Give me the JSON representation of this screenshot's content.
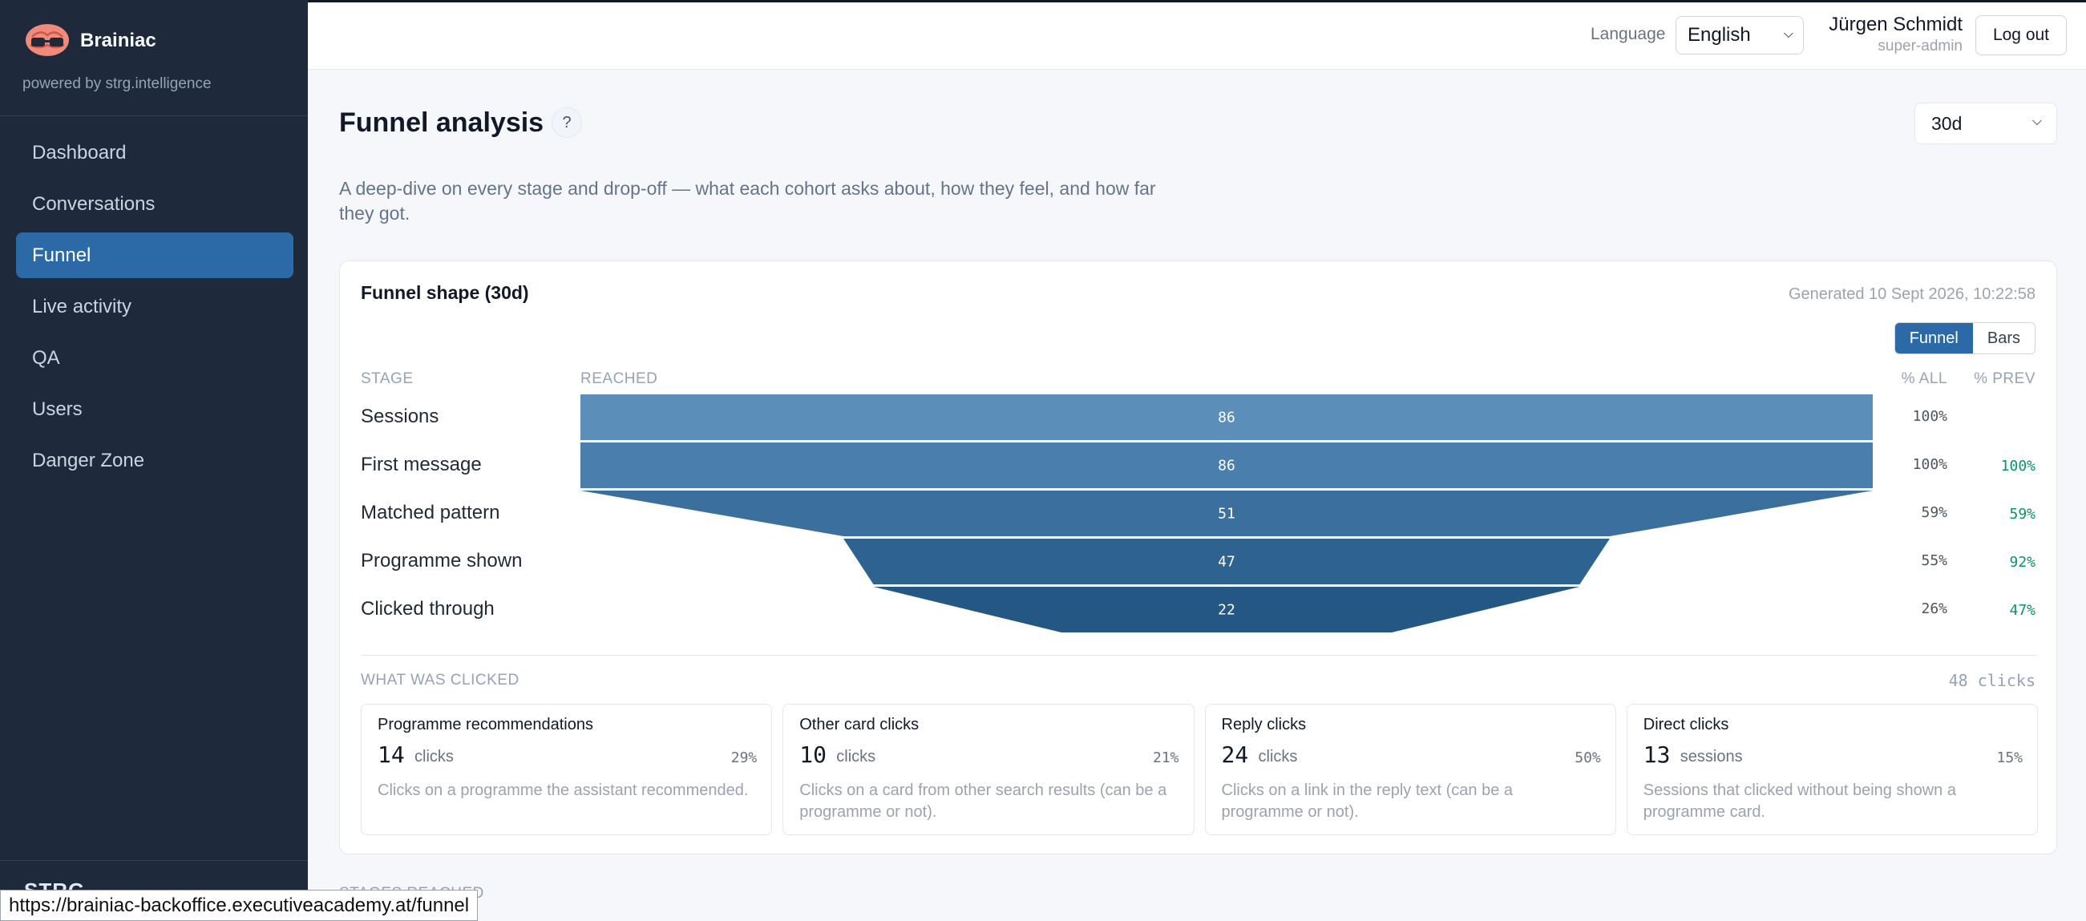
{
  "app": {
    "name": "Brainiac",
    "powered_by": "powered by strg.intelligence",
    "footer_logo": "STRG"
  },
  "sidebar": {
    "items": [
      {
        "label": "Dashboard",
        "active": false
      },
      {
        "label": "Conversations",
        "active": false
      },
      {
        "label": "Funnel",
        "active": true
      },
      {
        "label": "Live activity",
        "active": false
      },
      {
        "label": "QA",
        "active": false
      },
      {
        "label": "Users",
        "active": false
      },
      {
        "label": "Danger Zone",
        "active": false
      }
    ]
  },
  "header": {
    "language_label": "Language",
    "language_value": "English",
    "user_name": "Jürgen Schmidt",
    "user_role": "super-admin",
    "logout_label": "Log out"
  },
  "page": {
    "title": "Funnel analysis",
    "help_label": "?",
    "range_value": "30d",
    "description": "A deep-dive on every stage and drop-off — what each cohort asks about, how they feel, and how far they got."
  },
  "funnel_card": {
    "title": "Funnel shape (30d)",
    "generated": "Generated 10 Sept 2026, 10:22:58",
    "view_toggle": [
      {
        "label": "Funnel",
        "active": true
      },
      {
        "label": "Bars",
        "active": false
      }
    ],
    "columns": {
      "stage": "STAGE",
      "reached": "REACHED",
      "pct_all": "% ALL",
      "pct_prev": "% PREV"
    },
    "colors": [
      "#5b8fba",
      "#4a7fad",
      "#3b6f9e",
      "#2e6391",
      "#245784"
    ]
  },
  "chart_data": {
    "type": "funnel",
    "stages": [
      {
        "name": "Sessions",
        "value": 86,
        "pct_all": "100%",
        "pct_prev": ""
      },
      {
        "name": "First message",
        "value": 86,
        "pct_all": "100%",
        "pct_prev": "100%"
      },
      {
        "name": "Matched pattern",
        "value": 51,
        "pct_all": "59%",
        "pct_prev": "59%"
      },
      {
        "name": "Programme shown",
        "value": 47,
        "pct_all": "55%",
        "pct_prev": "92%"
      },
      {
        "name": "Clicked through",
        "value": 22,
        "pct_all": "26%",
        "pct_prev": "47%"
      }
    ]
  },
  "clicks": {
    "heading": "WHAT WAS CLICKED",
    "total": "48 clicks",
    "tiles": [
      {
        "title": "Programme recommendations",
        "count": "14",
        "unit": "clicks",
        "pct": "29%",
        "desc": "Clicks on a programme the assistant recommended."
      },
      {
        "title": "Other card clicks",
        "count": "10",
        "unit": "clicks",
        "pct": "21%",
        "desc": "Clicks on a card from other search results (can be a programme or not)."
      },
      {
        "title": "Reply clicks",
        "count": "24",
        "unit": "clicks",
        "pct": "50%",
        "desc": "Clicks on a link in the reply text (can be a programme or not)."
      },
      {
        "title": "Direct clicks",
        "count": "13",
        "unit": "sessions",
        "pct": "15%",
        "desc": "Sessions that clicked without being shown a programme card."
      }
    ]
  },
  "next_section": "STAGES REACHED",
  "status_url": "https://brainiac-backoffice.executiveacademy.at/funnel"
}
